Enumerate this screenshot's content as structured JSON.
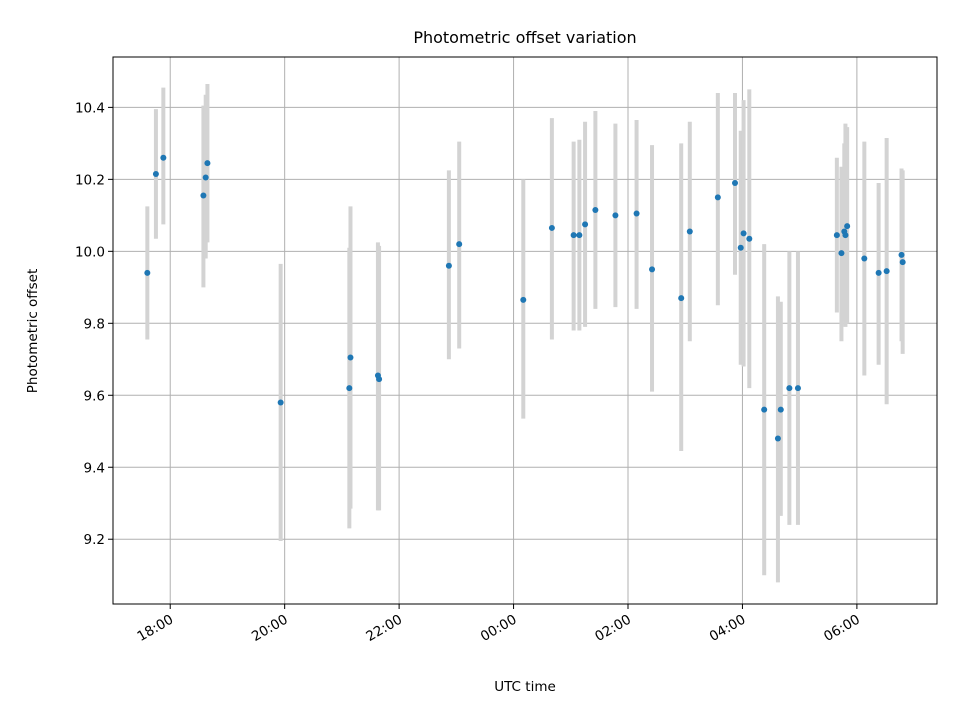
{
  "chart_data": {
    "type": "scatter",
    "title": "Photometric offset variation",
    "xlabel": "UTC time",
    "ylabel": "Photometric offset",
    "x_unit": "hours since 00:00 UTC (17:00 of previous day = -7)",
    "xlim": [
      -7.0,
      7.4
    ],
    "ylim": [
      9.02,
      10.54
    ],
    "x_ticks": [
      {
        "value": -6,
        "label": "18:00"
      },
      {
        "value": -4,
        "label": "20:00"
      },
      {
        "value": -2,
        "label": "22:00"
      },
      {
        "value": 0,
        "label": "00:00"
      },
      {
        "value": 2,
        "label": "02:00"
      },
      {
        "value": 4,
        "label": "04:00"
      },
      {
        "value": 6,
        "label": "06:00"
      }
    ],
    "y_ticks": [
      {
        "value": 9.2,
        "label": "9.2"
      },
      {
        "value": 9.4,
        "label": "9.4"
      },
      {
        "value": 9.6,
        "label": "9.6"
      },
      {
        "value": 9.8,
        "label": "9.8"
      },
      {
        "value": 10.0,
        "label": "10.0"
      },
      {
        "value": 10.2,
        "label": "10.2"
      },
      {
        "value": 10.4,
        "label": "10.4"
      }
    ],
    "grid": true,
    "marker_color": "#1f77b4",
    "errorbar_color": "#d3d3d3",
    "points": [
      {
        "x": -6.4,
        "y": 9.94,
        "lo": 9.755,
        "hi": 10.125
      },
      {
        "x": -6.25,
        "y": 10.215,
        "lo": 10.035,
        "hi": 10.395
      },
      {
        "x": -6.12,
        "y": 10.26,
        "lo": 10.075,
        "hi": 10.455
      },
      {
        "x": -5.42,
        "y": 10.155,
        "lo": 9.9,
        "hi": 10.405
      },
      {
        "x": -5.38,
        "y": 10.205,
        "lo": 9.98,
        "hi": 10.435
      },
      {
        "x": -5.35,
        "y": 10.245,
        "lo": 10.025,
        "hi": 10.465
      },
      {
        "x": -4.07,
        "y": 9.58,
        "lo": 9.195,
        "hi": 9.965
      },
      {
        "x": -2.87,
        "y": 9.62,
        "lo": 9.23,
        "hi": 10.01
      },
      {
        "x": -2.85,
        "y": 9.705,
        "lo": 9.285,
        "hi": 10.125
      },
      {
        "x": -2.37,
        "y": 9.655,
        "lo": 9.28,
        "hi": 10.025
      },
      {
        "x": -2.35,
        "y": 9.645,
        "lo": 9.28,
        "hi": 10.015
      },
      {
        "x": -1.13,
        "y": 9.96,
        "lo": 9.7,
        "hi": 10.225
      },
      {
        "x": -0.95,
        "y": 10.02,
        "lo": 9.73,
        "hi": 10.305
      },
      {
        "x": 0.17,
        "y": 9.865,
        "lo": 9.535,
        "hi": 10.2
      },
      {
        "x": 0.67,
        "y": 10.065,
        "lo": 9.755,
        "hi": 10.37
      },
      {
        "x": 1.05,
        "y": 10.045,
        "lo": 9.78,
        "hi": 10.305
      },
      {
        "x": 1.15,
        "y": 10.045,
        "lo": 9.78,
        "hi": 10.31
      },
      {
        "x": 1.25,
        "y": 10.075,
        "lo": 9.79,
        "hi": 10.36
      },
      {
        "x": 1.43,
        "y": 10.115,
        "lo": 9.84,
        "hi": 10.39
      },
      {
        "x": 1.78,
        "y": 10.1,
        "lo": 9.845,
        "hi": 10.355
      },
      {
        "x": 2.15,
        "y": 10.105,
        "lo": 9.84,
        "hi": 10.365
      },
      {
        "x": 2.42,
        "y": 9.95,
        "lo": 9.61,
        "hi": 10.295
      },
      {
        "x": 2.93,
        "y": 9.87,
        "lo": 9.445,
        "hi": 10.3
      },
      {
        "x": 3.08,
        "y": 10.055,
        "lo": 9.75,
        "hi": 10.36
      },
      {
        "x": 3.57,
        "y": 10.15,
        "lo": 9.85,
        "hi": 10.44
      },
      {
        "x": 3.87,
        "y": 10.19,
        "lo": 9.935,
        "hi": 10.44
      },
      {
        "x": 3.97,
        "y": 10.01,
        "lo": 9.685,
        "hi": 10.335
      },
      {
        "x": 4.02,
        "y": 10.05,
        "lo": 9.68,
        "hi": 10.42
      },
      {
        "x": 4.12,
        "y": 10.035,
        "lo": 9.62,
        "hi": 10.45
      },
      {
        "x": 4.38,
        "y": 9.56,
        "lo": 9.1,
        "hi": 10.02
      },
      {
        "x": 4.62,
        "y": 9.48,
        "lo": 9.08,
        "hi": 9.875
      },
      {
        "x": 4.67,
        "y": 9.56,
        "lo": 9.265,
        "hi": 9.86
      },
      {
        "x": 4.82,
        "y": 9.62,
        "lo": 9.24,
        "hi": 10.0
      },
      {
        "x": 4.97,
        "y": 9.62,
        "lo": 9.24,
        "hi": 10.0
      },
      {
        "x": 5.65,
        "y": 10.045,
        "lo": 9.83,
        "hi": 10.26
      },
      {
        "x": 5.73,
        "y": 9.995,
        "lo": 9.75,
        "hi": 10.235
      },
      {
        "x": 5.78,
        "y": 10.055,
        "lo": 9.805,
        "hi": 10.3
      },
      {
        "x": 5.8,
        "y": 10.045,
        "lo": 9.79,
        "hi": 10.355
      },
      {
        "x": 5.83,
        "y": 10.07,
        "lo": 9.8,
        "hi": 10.345
      },
      {
        "x": 6.13,
        "y": 9.98,
        "lo": 9.655,
        "hi": 10.305
      },
      {
        "x": 6.38,
        "y": 9.94,
        "lo": 9.685,
        "hi": 10.19
      },
      {
        "x": 6.52,
        "y": 9.945,
        "lo": 9.575,
        "hi": 10.315
      },
      {
        "x": 6.78,
        "y": 9.99,
        "lo": 9.75,
        "hi": 10.23
      },
      {
        "x": 6.8,
        "y": 9.97,
        "lo": 9.715,
        "hi": 10.225
      }
    ]
  }
}
